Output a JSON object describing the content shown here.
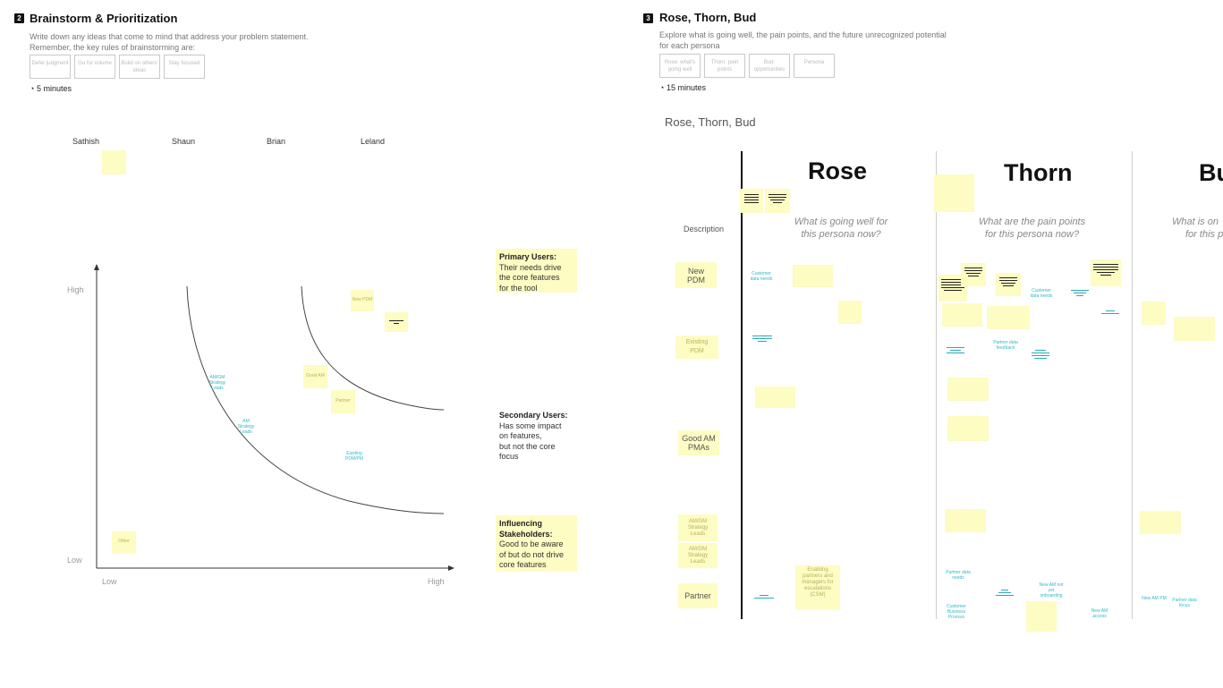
{
  "section2": {
    "number": "2",
    "title": "Brainstorm & Prioritization",
    "description_lines": [
      "Write down any ideas that come to mind that address your problem statement.",
      "Remember, the key rules of brainstorming are:"
    ],
    "rules": [
      "Defer judgment",
      "Go for volume",
      "Build on others' ideas",
      "Stay focused"
    ],
    "timer": "5 minutes",
    "people": [
      "Sathish",
      "Shaun",
      "Brian",
      "Leland"
    ],
    "chart": {
      "y_low": "Low",
      "y_high": "High",
      "x_low": "Low",
      "x_high": "High"
    },
    "legend": {
      "primary_title": "Primary Users:",
      "primary_body": [
        "Their needs drive",
        "the core features",
        "for the tool"
      ],
      "secondary_title": "Secondary Users:",
      "secondary_body": [
        "Has some impact",
        "on features,",
        "but not the core",
        "focus"
      ],
      "influencing_title": [
        "Influencing",
        "Stakeholders:"
      ],
      "influencing_body": [
        "Good to be aware",
        "of but do not drive",
        "core features"
      ]
    },
    "notes": {
      "top_right_1": "New PDM",
      "mid_1": "Good AM",
      "mid_2": "Partner",
      "bottom_left": "Other",
      "cyan_1": "AM/GM Strategy Leads",
      "cyan_2": "AM Strategy Leads",
      "cyan_3": "Existing PDM/PM"
    }
  },
  "section3": {
    "number": "3",
    "title": "Rose, Thorn, Bud",
    "description_lines": [
      "Explore what is going well, the pain points, and the future unrecognized potential",
      "for each persona"
    ],
    "rules": [
      "Rose: what's going well",
      "Thorn: pain points",
      "Bud: opportunities",
      "Persona"
    ],
    "timer": "15 minutes",
    "board_title": "Rose, Thorn, Bud",
    "columns": [
      {
        "title": "Rose",
        "question": [
          "What is going well for",
          "this persona now?"
        ]
      },
      {
        "title": "Thorn",
        "question": [
          "What are the pain points",
          "for this persona now?"
        ]
      },
      {
        "title": "Bu",
        "question": [
          "What is on",
          "for this p"
        ]
      }
    ],
    "rows": {
      "description": "Description",
      "new_pdm": [
        "New",
        "PDM"
      ],
      "existing_pdm": [
        "Existing",
        "PDM"
      ],
      "good_am": [
        "Good AM",
        "PMAs"
      ],
      "am_gm": [
        "AM/GM",
        "Strategy",
        "Leads"
      ],
      "am_strategy": [
        "AM/GM",
        "Strategy",
        "Leads"
      ],
      "partner": "Partner"
    },
    "notes": {
      "rose_partner": [
        "Enabling",
        "partners and",
        "managers for",
        "escalations",
        "(CSM)"
      ],
      "cyan_rose_newpdm": "Customer data needs",
      "cyan_thorn_1": "Customer data needs",
      "cyan_thorn_2": "Partner data feedback",
      "cyan_thorn_3": "Partner data needs",
      "cyan_thorn_4": "Customer Business Process",
      "cyan_thorn_5": "New AM not yet onboarding",
      "cyan_thorn_6": "New AM access",
      "cyan_bud_1": "New AM PM",
      "cyan_bud_2": "Partner data focus"
    }
  }
}
